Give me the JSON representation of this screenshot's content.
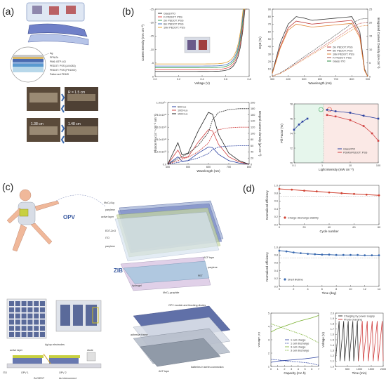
{
  "panels": {
    "a": {
      "label": "(a)",
      "layers": [
        "Ag",
        "PFN-Br",
        "PM6: BTP-4Cl",
        "PEDOT: PSS (Al 4083)",
        "PEDOT: PSS (PH1000)",
        "Patterned PDMS"
      ],
      "photo_labels": [
        "R = 1.5 cm",
        "1.38 cm",
        "1.48 cm"
      ]
    },
    "b": {
      "label": "(b)",
      "jv": {
        "xlabel": "Voltage (V)",
        "ylabel": "Current Density (mA cm⁻²)",
        "xticks": [
          "0.0",
          "0.2",
          "0.4",
          "0.6",
          "0.8"
        ],
        "yticks": [
          "0",
          "-5",
          "-10",
          "-15",
          "-20",
          "-25"
        ],
        "legend": [
          "Glass/ITO",
          "F/ PEDOT: PSS",
          "2k/ PEDOT: PSS",
          "6k/ PEDOT: PSS",
          "10k/ PEDOT: PSS"
        ]
      },
      "eqe": {
        "xlabel": "Wavelength (nm)",
        "ylabel": "EQE (%)",
        "y2label": "Integrated Current Density (mA cm⁻²)",
        "xticks": [
          "300",
          "400",
          "500",
          "600",
          "700",
          "800",
          "900"
        ],
        "yticks": [
          "0",
          "10",
          "20",
          "30",
          "40",
          "50",
          "60",
          "70",
          "80",
          "90"
        ],
        "y2ticks": [
          "0",
          "5",
          "10",
          "15",
          "20",
          "25"
        ],
        "legend": [
          "2k/ PEDOT: PSS",
          "6k/ PEDOT: PSS",
          "10k/ PEDOT: PSS",
          "F/ PEDOT: PSS",
          "Glass/ ITO"
        ]
      },
      "photon": {
        "xlabel": "Wavelength (nm)",
        "ylabel": "Photon Flux (s⁻¹ cm⁻² nm⁻¹)",
        "y2label": "Integral current density (μA cm⁻²)",
        "xticks": [
          "400",
          "500",
          "600",
          "700",
          "800"
        ],
        "yticks": [
          "0.0",
          "2.0x10¹³",
          "4.0x10¹³",
          "6.0x10¹³",
          "8.0x10¹³",
          "1.0x10¹⁴"
        ],
        "y2ticks": [
          "0",
          "20",
          "40",
          "60",
          "80",
          "100",
          "120",
          "140",
          "160",
          "180",
          "200"
        ],
        "legend": [
          "500 lux",
          "1000 lux",
          "1500 lux"
        ]
      },
      "ff": {
        "xlabel": "Light intensity (mW cm⁻²)",
        "ylabel": "Fill Factor (%)",
        "xticks": [
          "0.1",
          "1",
          "10",
          "100"
        ],
        "yticks": [
          "70",
          "72",
          "74",
          "76",
          "78"
        ],
        "legend": [
          "Glass/ITO",
          "PDMS/PEDOT: PSS"
        ]
      }
    },
    "c": {
      "label": "(c)",
      "callouts": [
        "MoO₃/Ag",
        "parylene",
        "active layer",
        "EDT-ZnO",
        "ITO",
        "parylene",
        "OPV",
        "ACF tape",
        "parylene",
        "PET",
        "hydrogel",
        "ZIB",
        "MnO₂-graphite"
      ],
      "cross_section": [
        "Ag top electrodes",
        "active layer",
        "diode",
        "ITO",
        "OPV 1",
        "OPV 2",
        "ZnO/EDT",
        "Au interconnect"
      ],
      "module": [
        "OPV module and blocking diodes",
        "adhesive frame",
        "ACF tape",
        "batteries in series connection"
      ]
    },
    "d": {
      "label": "(d)",
      "cycle": {
        "xlabel": "Cycle number",
        "ylabel": "Normalized efficiency",
        "xticks": [
          "0",
          "20",
          "40",
          "60",
          "80"
        ],
        "yticks": [
          "0.0",
          "0.2",
          "0.4",
          "0.6",
          "0.8",
          "1.0"
        ],
        "legend": "Charge-discharge stability"
      },
      "shelf": {
        "xlabel": "Time (day)",
        "ylabel": "Normalized efficiency",
        "xticks": [
          "0",
          "2",
          "4",
          "6",
          "8",
          "10",
          "12",
          "14"
        ],
        "yticks": [
          "0.0",
          "0.2",
          "0.4",
          "0.6",
          "0.8",
          "1.0"
        ],
        "legend": "Shelf lifetime"
      },
      "capacity": {
        "xlabel": "Capacity (mA h)",
        "ylabel": "Voltage (V)",
        "xticks": [
          "0",
          "1",
          "2",
          "3",
          "4",
          "5",
          "6",
          "7"
        ],
        "yticks": [
          "1",
          "2",
          "3",
          "4",
          "5"
        ],
        "legend": [
          "1 cell charge",
          "1 cell discharge",
          "3 cell charge",
          "3 cell discharge"
        ]
      },
      "time": {
        "xlabel": "Time (min)",
        "ylabel": "Voltage (V)",
        "xticks": [
          "0",
          "500",
          "1000",
          "1500",
          "2000"
        ],
        "yticks": [
          "1.0",
          "1.1",
          "1.2",
          "1.3",
          "1.4",
          "1.5",
          "1.6",
          "1.7",
          "1.8",
          "1.9",
          "2.0"
        ],
        "legend": [
          "Charging by power supply",
          "Photo-charging"
        ]
      }
    }
  },
  "chart_data": [
    {
      "type": "line",
      "panel": "b-jv",
      "xlabel": "Voltage (V)",
      "ylabel": "Current Density (mA cm⁻²)",
      "xlim": [
        -0.1,
        0.9
      ],
      "ylim": [
        -27,
        2
      ],
      "series": [
        {
          "name": "Glass/ITO",
          "voc": 0.85,
          "jsc": -24.8,
          "color": "#333333"
        },
        {
          "name": "F/ PEDOT: PSS",
          "voc": 0.845,
          "jsc": -24.0,
          "color": "#e05050"
        },
        {
          "name": "2k/ PEDOT: PSS",
          "voc": 0.84,
          "jsc": -23.2,
          "color": "#3aa050"
        },
        {
          "name": "6k/ PEDOT: PSS",
          "voc": 0.835,
          "jsc": -22.5,
          "color": "#4070c0"
        },
        {
          "name": "10k/ PEDOT: PSS",
          "voc": 0.83,
          "jsc": -21.6,
          "color": "#e0a030"
        }
      ]
    },
    {
      "type": "line",
      "panel": "b-eqe",
      "xlabel": "Wavelength (nm)",
      "ylabel": "EQE (%)",
      "xlim": [
        300,
        900
      ],
      "ylim": [
        0,
        90
      ],
      "x": [
        300,
        350,
        400,
        450,
        500,
        550,
        600,
        650,
        700,
        750,
        800,
        850,
        880,
        900
      ],
      "series": [
        {
          "name": "Glass/ ITO",
          "values": [
            5,
            45,
            70,
            80,
            78,
            75,
            76,
            77,
            78,
            79,
            80,
            60,
            10,
            0
          ]
        },
        {
          "name": "2k/ PEDOT: PSS",
          "values": [
            4,
            40,
            65,
            74,
            72,
            70,
            71,
            72,
            73,
            74,
            75,
            55,
            8,
            0
          ]
        },
        {
          "name": "F/ PEDOT: PSS",
          "values": [
            4,
            38,
            62,
            70,
            68,
            66,
            67,
            68,
            69,
            70,
            71,
            52,
            8,
            0
          ]
        }
      ]
    },
    {
      "type": "line",
      "panel": "b-photon",
      "xlabel": "Wavelength (nm)",
      "xlim": [
        400,
        800
      ],
      "ylim": [
        0,
        100000000000000.0
      ],
      "x": [
        400,
        450,
        470,
        500,
        550,
        600,
        620,
        650,
        700,
        750,
        800
      ],
      "series": [
        {
          "name": "500 lux",
          "values": [
            0,
            12000000000000.0,
            5000000000000.0,
            6000000000000.0,
            18000000000000.0,
            28000000000000.0,
            27000000000000.0,
            16000000000000.0,
            6000000000000.0,
            2000000000000.0,
            0
          ]
        },
        {
          "name": "1000 lux",
          "values": [
            0,
            23000000000000.0,
            10000000000000.0,
            12000000000000.0,
            36000000000000.0,
            56000000000000.0,
            54000000000000.0,
            32000000000000.0,
            12000000000000.0,
            4000000000000.0,
            0
          ]
        },
        {
          "name": "1500 lux",
          "values": [
            0,
            35000000000000.0,
            15000000000000.0,
            18000000000000.0,
            54000000000000.0,
            84000000000000.0,
            81000000000000.0,
            48000000000000.0,
            18000000000000.0,
            6000000000000.0,
            0
          ]
        }
      ]
    },
    {
      "type": "scatter",
      "panel": "b-ff",
      "xlabel": "Light intensity (mW cm⁻²)",
      "ylabel": "Fill Factor (%)",
      "ylim": [
        70,
        78
      ],
      "series": [
        {
          "name": "Glass/ITO",
          "x": [
            0.1,
            0.15,
            0.2,
            0.3,
            1.5,
            3,
            10,
            30,
            100
          ],
          "values": [
            74.5,
            75.2,
            75.6,
            76.0,
            77.2,
            77.0,
            76.8,
            76.4,
            76.0
          ]
        },
        {
          "name": "PDMS/PEDOT: PSS",
          "x": [
            1.5,
            3,
            10,
            30,
            60,
            100
          ],
          "values": [
            76.5,
            76.3,
            75.8,
            75.0,
            74.0,
            73.0
          ]
        }
      ]
    },
    {
      "type": "line",
      "panel": "d-cycle",
      "xlabel": "Cycle number",
      "ylabel": "Normalized efficiency",
      "xlim": [
        0,
        80
      ],
      "ylim": [
        0,
        1.1
      ],
      "x": [
        0,
        10,
        20,
        30,
        40,
        50,
        60,
        70,
        80
      ],
      "series": [
        {
          "name": "Charge-discharge stability",
          "values": [
            1.0,
            0.98,
            0.95,
            0.93,
            0.9,
            0.88,
            0.86,
            0.84,
            0.82
          ]
        }
      ]
    },
    {
      "type": "line",
      "panel": "d-shelf",
      "xlabel": "Time (day)",
      "ylabel": "Normalized efficiency",
      "xlim": [
        0,
        14
      ],
      "ylim": [
        0,
        1.1
      ],
      "x": [
        0,
        1,
        2,
        3,
        4,
        5,
        6,
        7,
        8,
        9,
        10,
        11,
        12,
        13,
        14
      ],
      "series": [
        {
          "name": "Shelf lifetime",
          "values": [
            1.0,
            0.98,
            0.95,
            0.93,
            0.91,
            0.9,
            0.89,
            0.89,
            0.88,
            0.88,
            0.88,
            0.88,
            0.87,
            0.87,
            0.87
          ]
        }
      ]
    },
    {
      "type": "line",
      "panel": "d-capacity",
      "xlabel": "Capacity (mA h)",
      "ylabel": "Voltage (V)",
      "xlim": [
        0,
        7
      ],
      "ylim": [
        1,
        5.5
      ],
      "x": [
        0,
        1,
        2,
        3,
        4,
        5,
        6,
        7
      ],
      "series": [
        {
          "name": "3 cell charge",
          "values": [
            3.9,
            4.2,
            4.4,
            4.6,
            4.8,
            4.95,
            5.1,
            5.3
          ]
        },
        {
          "name": "3 cell discharge",
          "values": [
            4.6,
            4.4,
            4.2,
            4.0,
            3.8,
            3.6,
            3.3,
            3.0
          ]
        },
        {
          "name": "1 cell charge",
          "values": [
            1.35,
            1.45,
            1.5,
            1.55,
            1.6,
            1.65,
            1.72,
            1.8
          ]
        },
        {
          "name": "1 cell discharge",
          "values": [
            1.6,
            1.55,
            1.48,
            1.42,
            1.38,
            1.33,
            1.25,
            1.1
          ]
        }
      ]
    },
    {
      "type": "line",
      "panel": "d-time",
      "xlabel": "Time (min)",
      "ylabel": "Voltage (V)",
      "xlim": [
        0,
        2300
      ],
      "ylim": [
        1.0,
        2.0
      ],
      "series": [
        {
          "name": "Charging by power supply",
          "cycles": [
            [
              0,
              1100
            ]
          ]
        },
        {
          "name": "Photo-charging",
          "cycles": [
            [
              1100,
              2300
            ]
          ]
        }
      ]
    }
  ]
}
